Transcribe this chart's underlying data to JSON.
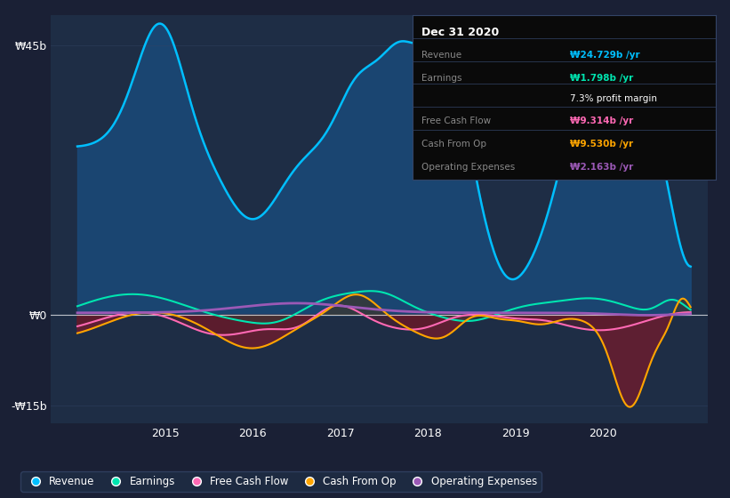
{
  "bg_color": "#1a2035",
  "plot_bg_color": "#1e2d45",
  "revenue_color": "#00bfff",
  "earnings_color": "#00e5b0",
  "fcf_color": "#ff69b4",
  "cashfromop_color": "#ffa500",
  "opex_color": "#9b59b6",
  "revenue_fill_color": "#1a4a7a",
  "negative_fill_color": "#7a1a2a",
  "ytick_labels": [
    "₩45b",
    "₩0",
    "-₩15b"
  ],
  "ytick_vals": [
    45,
    0,
    -15
  ],
  "xtick_labels": [
    "2015",
    "2016",
    "2017",
    "2018",
    "2019",
    "2020"
  ],
  "xtick_vals": [
    2015,
    2016,
    2017,
    2018,
    2019,
    2020
  ],
  "legend": [
    {
      "label": "Revenue",
      "color": "#00bfff"
    },
    {
      "label": "Earnings",
      "color": "#00e5b0"
    },
    {
      "label": "Free Cash Flow",
      "color": "#ff69b4"
    },
    {
      "label": "Cash From Op",
      "color": "#ffa500"
    },
    {
      "label": "Operating Expenses",
      "color": "#9b59b6"
    }
  ],
  "tooltip_bg": "#0a0a0a",
  "tooltip_border": "#334466",
  "tooltip_title": "Dec 31 2020",
  "tooltip_rows": [
    {
      "label": "Revenue",
      "value": "₩24.729b /yr",
      "value_color": "#00bfff"
    },
    {
      "label": "Earnings",
      "value": "₩1.798b /yr",
      "value_color": "#00e5b0"
    },
    {
      "label": "",
      "value": "7.3% profit margin",
      "value_color": "#ffffff"
    },
    {
      "label": "Free Cash Flow",
      "value": "₩9.314b /yr",
      "value_color": "#ff69b4"
    },
    {
      "label": "Cash From Op",
      "value": "₩9.530b /yr",
      "value_color": "#ffa500"
    },
    {
      "label": "Operating Expenses",
      "value": "₩2.163b /yr",
      "value_color": "#9b59b6"
    }
  ]
}
